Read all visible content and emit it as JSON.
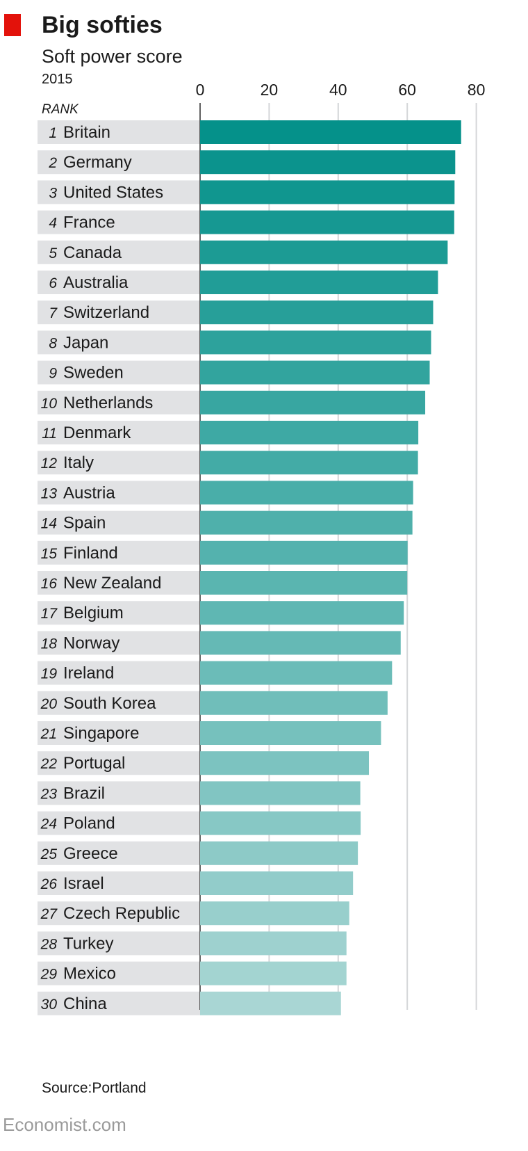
{
  "header": {
    "title": "Big softies",
    "subtitle": "Soft power score",
    "year": "2015",
    "rank_label": "RANK"
  },
  "footer": {
    "source": "Source:Portland",
    "publisher": "Economist.com"
  },
  "colors": {
    "accent_red": "#e3120b",
    "bar_top": "#05918a",
    "bar_bottom": "#a9d6d4",
    "label_band": "#e1e2e4",
    "gridline": "#d4d6d8"
  },
  "chart_data": {
    "type": "bar",
    "orientation": "horizontal",
    "xlim": [
      0,
      80
    ],
    "xticks": [
      0,
      20,
      40,
      60,
      80
    ],
    "tick_labels": [
      "0",
      "20",
      "40",
      "60",
      "80"
    ],
    "grid": true,
    "ranks": [
      "1",
      "2",
      "3",
      "4",
      "5",
      "6",
      "7",
      "8",
      "9",
      "10",
      "11",
      "12",
      "13",
      "14",
      "15",
      "16",
      "17",
      "18",
      "19",
      "20",
      "21",
      "22",
      "23",
      "24",
      "25",
      "26",
      "27",
      "28",
      "29",
      "30"
    ],
    "categories": [
      "Britain",
      "Germany",
      "United States",
      "France",
      "Canada",
      "Australia",
      "Switzerland",
      "Japan",
      "Sweden",
      "Netherlands",
      "Denmark",
      "Italy",
      "Austria",
      "Spain",
      "Finland",
      "New Zealand",
      "Belgium",
      "Norway",
      "Ireland",
      "South Korea",
      "Singapore",
      "Portugal",
      "Brazil",
      "Poland",
      "Greece",
      "Israel",
      "Czech Republic",
      "Turkey",
      "Mexico",
      "China"
    ],
    "values": [
      75.6,
      73.9,
      73.7,
      73.6,
      71.7,
      68.9,
      67.5,
      66.9,
      66.5,
      65.2,
      63.2,
      63.1,
      61.7,
      61.5,
      60.1,
      60.0,
      59.0,
      58.1,
      55.6,
      54.3,
      52.4,
      48.9,
      46.4,
      46.5,
      45.7,
      44.3,
      43.2,
      42.4,
      42.4,
      40.8
    ]
  }
}
